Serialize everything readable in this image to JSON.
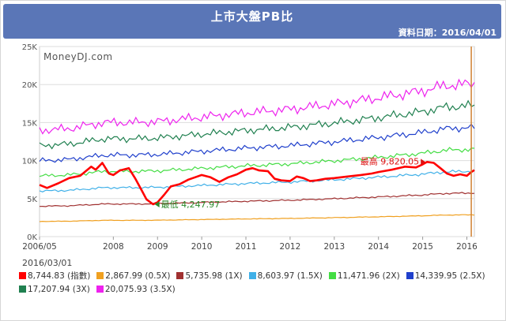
{
  "header": {
    "title": "上市大盤PB比",
    "date_label": "資料日期：2016/04/01"
  },
  "watermark": "MoneyDJ.com",
  "legend_date": "2016/03/01",
  "chart_data": {
    "type": "line",
    "y_ticks": [
      "0K",
      "5K",
      "10K",
      "15K",
      "20K",
      "25K"
    ],
    "ylim": [
      0,
      25000
    ],
    "x_ticks": [
      {
        "label": "2006/05",
        "t": 2006.33
      },
      {
        "label": "2008",
        "t": 2008.0
      },
      {
        "label": "2009",
        "t": 2009.0
      },
      {
        "label": "2010",
        "t": 2010.0
      },
      {
        "label": "2011",
        "t": 2011.0
      },
      {
        "label": "2012",
        "t": 2012.0
      },
      {
        "label": "2013",
        "t": 2013.0
      },
      {
        "label": "2014",
        "t": 2014.0
      },
      {
        "label": "2015",
        "t": 2015.0
      },
      {
        "label": "2016",
        "t": 2016.0
      }
    ],
    "xlim": [
      2006.33,
      2016.17
    ],
    "grid": "horizontal",
    "main_series": {
      "name": "指數",
      "value_label": "8,744.83 (指數)",
      "color": "#ff0000",
      "points": [
        [
          2006.33,
          6800
        ],
        [
          2006.5,
          6400
        ],
        [
          2006.75,
          7000
        ],
        [
          2007.0,
          7700
        ],
        [
          2007.25,
          8000
        ],
        [
          2007.5,
          9200
        ],
        [
          2007.6,
          8800
        ],
        [
          2007.75,
          9700
        ],
        [
          2007.9,
          8300
        ],
        [
          2008.0,
          8100
        ],
        [
          2008.15,
          8700
        ],
        [
          2008.35,
          9000
        ],
        [
          2008.5,
          7600
        ],
        [
          2008.65,
          6000
        ],
        [
          2008.75,
          4900
        ],
        [
          2008.9,
          4250
        ],
        [
          2009.0,
          4500
        ],
        [
          2009.15,
          5500
        ],
        [
          2009.3,
          6600
        ],
        [
          2009.5,
          6900
        ],
        [
          2009.7,
          7500
        ],
        [
          2009.85,
          7800
        ],
        [
          2010.0,
          8100
        ],
        [
          2010.2,
          7800
        ],
        [
          2010.4,
          7200
        ],
        [
          2010.6,
          7800
        ],
        [
          2010.8,
          8200
        ],
        [
          2011.0,
          8800
        ],
        [
          2011.15,
          9000
        ],
        [
          2011.3,
          8700
        ],
        [
          2011.5,
          8600
        ],
        [
          2011.65,
          7600
        ],
        [
          2011.8,
          7400
        ],
        [
          2012.0,
          7300
        ],
        [
          2012.15,
          7900
        ],
        [
          2012.3,
          7700
        ],
        [
          2012.45,
          7300
        ],
        [
          2012.6,
          7400
        ],
        [
          2012.8,
          7600
        ],
        [
          2013.0,
          7700
        ],
        [
          2013.3,
          7900
        ],
        [
          2013.6,
          8100
        ],
        [
          2013.85,
          8300
        ],
        [
          2014.0,
          8500
        ],
        [
          2014.3,
          8800
        ],
        [
          2014.6,
          9200
        ],
        [
          2014.85,
          9100
        ],
        [
          2015.0,
          9500
        ],
        [
          2015.1,
          9820
        ],
        [
          2015.25,
          9700
        ],
        [
          2015.4,
          9000
        ],
        [
          2015.55,
          8300
        ],
        [
          2015.7,
          8000
        ],
        [
          2015.85,
          8200
        ],
        [
          2016.0,
          8000
        ],
        [
          2016.1,
          8500
        ],
        [
          2016.17,
          8745
        ]
      ]
    },
    "bands": [
      {
        "value_label": "2,867.99 (0.5X)",
        "color": "#f0a020",
        "factor": 0.33
      },
      {
        "value_label": "5,735.98 (1X)",
        "color": "#a03030",
        "factor": 0.66
      },
      {
        "value_label": "8,603.97 (1.5X)",
        "color": "#40b0e8",
        "factor": 0.99
      },
      {
        "value_label": "11,471.96 (2X)",
        "color": "#44dd44",
        "factor": 1.32
      },
      {
        "value_label": "14,339.95 (2.5X)",
        "color": "#2040cc",
        "factor": 1.65
      },
      {
        "value_label": "17,207.94 (3X)",
        "color": "#208050",
        "factor": 1.98
      },
      {
        "value_label": "20,075.93 (3.5X)",
        "color": "#ee22ee",
        "factor": 2.31
      }
    ],
    "band_base": {
      "points": [
        [
          2006.33,
          6050
        ],
        [
          2007.0,
          6150
        ],
        [
          2007.8,
          6500
        ],
        [
          2008.5,
          6500
        ],
        [
          2009.0,
          6550
        ],
        [
          2010.0,
          6800
        ],
        [
          2011.0,
          7050
        ],
        [
          2012.0,
          7250
        ],
        [
          2013.0,
          7550
        ],
        [
          2014.0,
          7900
        ],
        [
          2015.0,
          8300
        ],
        [
          2015.5,
          8600
        ],
        [
          2016.17,
          8700
        ]
      ]
    },
    "annotations": [
      {
        "text": "最低 4,247.97",
        "t": 2008.9,
        "v": 4248,
        "color": "#2a8a2a"
      },
      {
        "text": "最高 9,820.05",
        "t": 2015.1,
        "v": 9820,
        "color": "#dd1111"
      }
    ],
    "cursor_t": 2016.1
  }
}
